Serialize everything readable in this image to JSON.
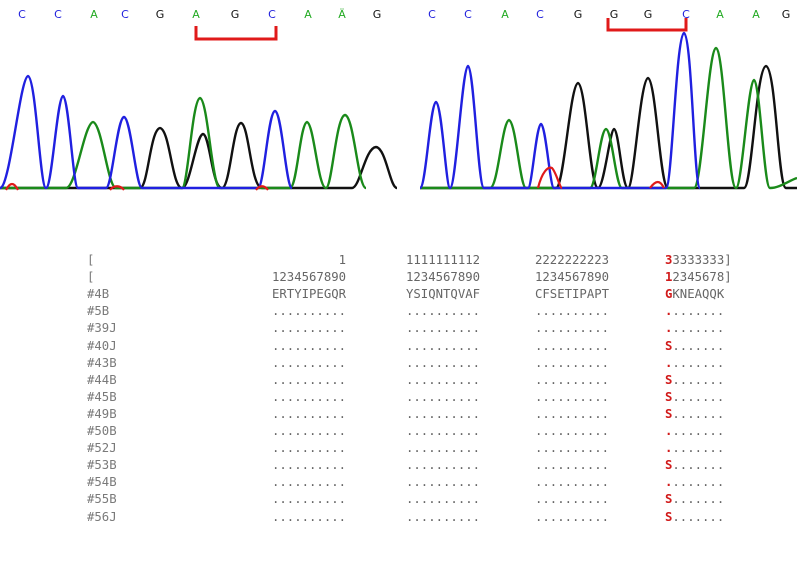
{
  "chromatograms": [
    {
      "name": "left",
      "bases": [
        "C",
        "C",
        "A",
        "C",
        "G",
        "A",
        "G",
        "C",
        "A",
        "Ä",
        "G"
      ],
      "base_colors": [
        "#2222dd",
        "#2222dd",
        "#22aa22",
        "#2222dd",
        "#111111",
        "#22aa22",
        "#111111",
        "#2222dd",
        "#22aa22",
        "#22aa22",
        "#111111"
      ]
    },
    {
      "name": "right",
      "bases": [
        "C",
        "C",
        "A",
        "C",
        "G",
        "G",
        "G",
        "C",
        "A",
        "A",
        "G"
      ],
      "base_colors": [
        "#2222dd",
        "#2222dd",
        "#22aa22",
        "#2222dd",
        "#111111",
        "#111111",
        "#111111",
        "#2222dd",
        "#22aa22",
        "#22aa22",
        "#111111"
      ]
    }
  ],
  "colors": {
    "A": "#1a8a1a",
    "C": "#2020e0",
    "G": "#111111",
    "T": "#e01a1a",
    "highlight": "#d11a1a",
    "bracket": "#e01a1a"
  },
  "alignment": {
    "header": [
      {
        "label": "[",
        "c1": "         1",
        "c2": "1111111112",
        "c3": "2222222223",
        "c4_hl": "3",
        "c4_rest": "3333333]"
      },
      {
        "label": "[",
        "c1": "1234567890",
        "c2": "1234567890",
        "c3": "1234567890",
        "c4_hl": "1",
        "c4_rest": "2345678]"
      }
    ],
    "rows": [
      {
        "label": "#4B",
        "c1": "ERTYIPEGQR",
        "c2": "YSIQNTQVAF",
        "c3": "CFSETIPAPT",
        "c4_hl": "G",
        "c4_rest": "KNEAQQK"
      },
      {
        "label": "#5B",
        "c1": "..........",
        "c2": "..........",
        "c3": "..........",
        "c4_hl": ".",
        "c4_rest": "......."
      },
      {
        "label": "#39J",
        "c1": "..........",
        "c2": "..........",
        "c3": "..........",
        "c4_hl": ".",
        "c4_rest": "......."
      },
      {
        "label": "#40J",
        "c1": "..........",
        "c2": "..........",
        "c3": "..........",
        "c4_hl": "S",
        "c4_rest": "......."
      },
      {
        "label": "#43B",
        "c1": "..........",
        "c2": "..........",
        "c3": "..........",
        "c4_hl": ".",
        "c4_rest": "......."
      },
      {
        "label": "#44B",
        "c1": "..........",
        "c2": "..........",
        "c3": "..........",
        "c4_hl": "S",
        "c4_rest": "......."
      },
      {
        "label": "#45B",
        "c1": "..........",
        "c2": "..........",
        "c3": "..........",
        "c4_hl": "S",
        "c4_rest": "......."
      },
      {
        "label": "#49B",
        "c1": "..........",
        "c2": "..........",
        "c3": "..........",
        "c4_hl": "S",
        "c4_rest": "......."
      },
      {
        "label": "#50B",
        "c1": "..........",
        "c2": "..........",
        "c3": "..........",
        "c4_hl": ".",
        "c4_rest": "......."
      },
      {
        "label": "#52J",
        "c1": "..........",
        "c2": "..........",
        "c3": "..........",
        "c4_hl": ".",
        "c4_rest": "......."
      },
      {
        "label": "#53B",
        "c1": "..........",
        "c2": "..........",
        "c3": "..........",
        "c4_hl": "S",
        "c4_rest": "......."
      },
      {
        "label": "#54B",
        "c1": "..........",
        "c2": "..........",
        "c3": "..........",
        "c4_hl": ".",
        "c4_rest": "......."
      },
      {
        "label": "#55B",
        "c1": "..........",
        "c2": "..........",
        "c3": "..........",
        "c4_hl": "S",
        "c4_rest": "......."
      },
      {
        "label": "#56J",
        "c1": "..........",
        "c2": "..........",
        "c3": "..........",
        "c4_hl": "S",
        "c4_rest": "......."
      }
    ]
  }
}
